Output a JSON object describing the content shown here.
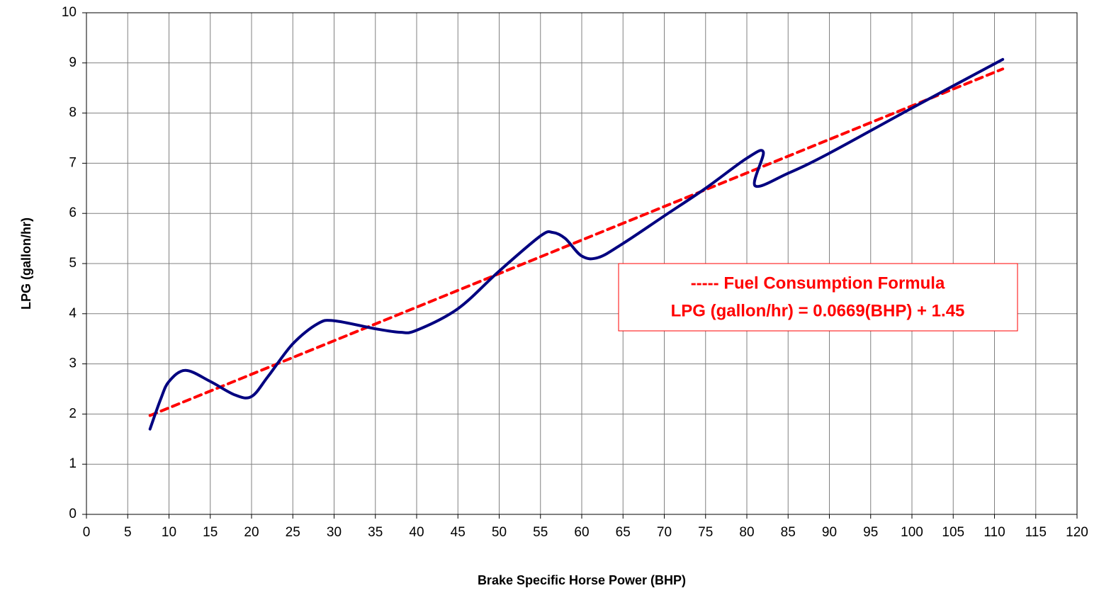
{
  "chart_data": {
    "type": "line",
    "xlabel": "Brake Specific Horse Power (BHP)",
    "ylabel": "LPG (gallon/hr)",
    "annotations": [
      "----- Fuel Consumption Formula",
      "LPG (gallon/hr) = 0.0669(BHP) + 1.45"
    ],
    "xlim": [
      0,
      120
    ],
    "xticks": [
      0,
      5,
      10,
      15,
      20,
      25,
      30,
      35,
      40,
      45,
      50,
      55,
      60,
      65,
      70,
      75,
      80,
      85,
      90,
      95,
      100,
      105,
      110,
      115,
      120
    ],
    "ylim": [
      0,
      10
    ],
    "yticks": [
      0,
      1,
      2,
      3,
      4,
      5,
      6,
      7,
      8,
      9,
      10
    ],
    "grid": true,
    "series": [
      {
        "color": "#000080",
        "style": "solid",
        "x": [
          7.7,
          9,
          10,
          12,
          15,
          18,
          20,
          22,
          25,
          28,
          30,
          35,
          38,
          40,
          45,
          50,
          55,
          56.5,
          58,
          60,
          62,
          65,
          70,
          75,
          80,
          82,
          81,
          85,
          90,
          100,
          111
        ],
        "values": [
          1.7,
          2.3,
          2.65,
          2.87,
          2.65,
          2.38,
          2.35,
          2.75,
          3.4,
          3.8,
          3.86,
          3.7,
          3.63,
          3.67,
          4.1,
          4.85,
          5.55,
          5.62,
          5.5,
          5.15,
          5.12,
          5.4,
          5.95,
          6.5,
          7.1,
          7.22,
          6.55,
          6.8,
          7.2,
          8.1,
          9.07
        ]
      },
      {
        "color": "#ff0000",
        "style": "dashed",
        "x": [
          7.7,
          111
        ],
        "values": [
          1.97,
          8.88
        ]
      }
    ]
  }
}
